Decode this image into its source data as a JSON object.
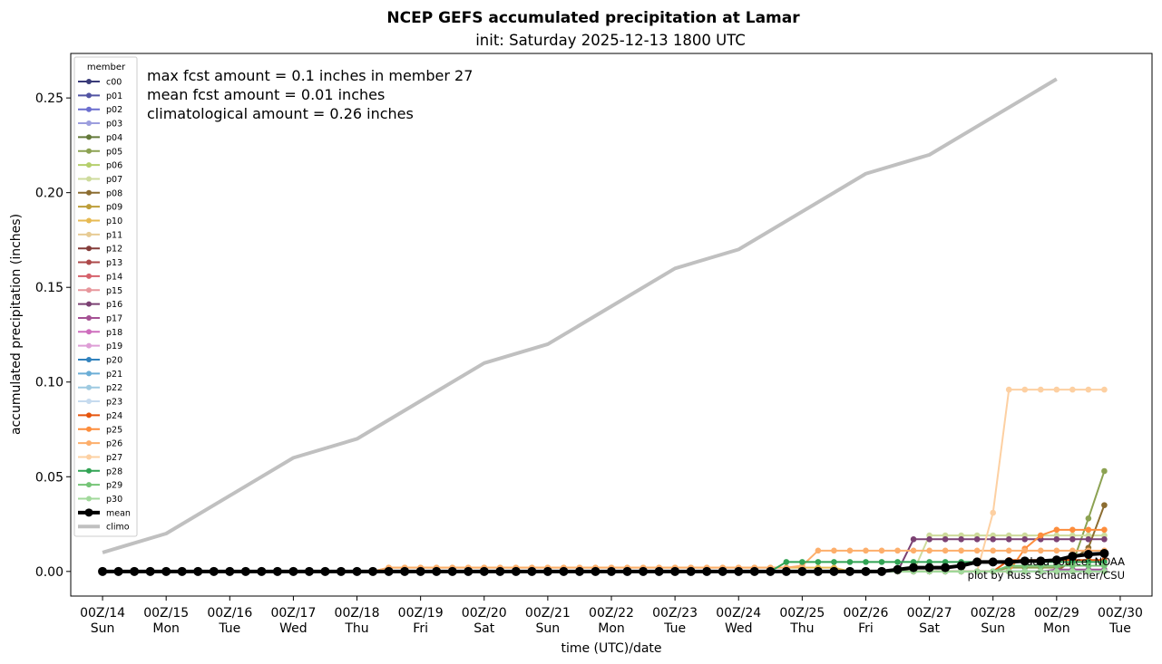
{
  "chart_data": {
    "type": "line",
    "title": "NCEP GEFS accumulated precipitation at Lamar",
    "subtitle": "init: Saturday 2025-12-13 1800 UTC",
    "xlabel": "time (UTC)/date",
    "ylabel": "accumulated precipitation (inches)",
    "xlim": [
      -0.5,
      16.5
    ],
    "ylim": [
      -0.013,
      0.2735
    ],
    "yticks": [
      0.0,
      0.05,
      0.1,
      0.15,
      0.2,
      0.25
    ],
    "ytick_labels": [
      "0.00",
      "0.05",
      "0.10",
      "0.15",
      "0.20",
      "0.25"
    ],
    "xticks": [
      {
        "day": "00Z/14",
        "dow": "Sun"
      },
      {
        "day": "00Z/15",
        "dow": "Mon"
      },
      {
        "day": "00Z/16",
        "dow": "Tue"
      },
      {
        "day": "00Z/17",
        "dow": "Wed"
      },
      {
        "day": "00Z/18",
        "dow": "Thu"
      },
      {
        "day": "00Z/19",
        "dow": "Fri"
      },
      {
        "day": "00Z/20",
        "dow": "Sat"
      },
      {
        "day": "00Z/21",
        "dow": "Sun"
      },
      {
        "day": "00Z/22",
        "dow": "Mon"
      },
      {
        "day": "00Z/23",
        "dow": "Tue"
      },
      {
        "day": "00Z/24",
        "dow": "Wed"
      },
      {
        "day": "00Z/25",
        "dow": "Thu"
      },
      {
        "day": "00Z/26",
        "dow": "Fri"
      },
      {
        "day": "00Z/27",
        "dow": "Sat"
      },
      {
        "day": "00Z/28",
        "dow": "Sun"
      },
      {
        "day": "00Z/29",
        "dow": "Mon"
      },
      {
        "day": "00Z/30",
        "dow": "Tue"
      }
    ],
    "annotations": [
      "max fcst amount = 0.1 inches in member 27",
      "mean fcst amount = 0.01 inches",
      "climatological amount = 0.26 inches"
    ],
    "credits": [
      "data source: NOAA",
      "plot by Russ Schumacher/CSU"
    ],
    "legend_title": "member",
    "legend_position": "upper-left",
    "time_start": 0,
    "time_step": 0.25,
    "n_steps": 64,
    "series": [
      {
        "name": "c00",
        "color": "#393b79",
        "default": 0,
        "steps": []
      },
      {
        "name": "p01",
        "color": "#5254a3",
        "default": 0,
        "steps": []
      },
      {
        "name": "p02",
        "color": "#6b6ecf",
        "default": 0,
        "steps": []
      },
      {
        "name": "p03",
        "color": "#9c9ede",
        "default": 0,
        "steps": []
      },
      {
        "name": "p04",
        "color": "#637939",
        "default": 0,
        "steps": []
      },
      {
        "name": "p05",
        "color": "#8ca252",
        "default": 0,
        "steps": [
          [
            57,
            0.002
          ],
          [
            61,
            0.004
          ],
          [
            62,
            0.028
          ],
          [
            63,
            0.053
          ]
        ]
      },
      {
        "name": "p06",
        "color": "#b5cf6b",
        "default": 0,
        "steps": []
      },
      {
        "name": "p07",
        "color": "#cedb9c",
        "default": 0,
        "steps": [
          [
            52,
            0.019
          ]
        ]
      },
      {
        "name": "p08",
        "color": "#8c6d31",
        "default": 0,
        "steps": [
          [
            61,
            0.006
          ],
          [
            62,
            0.0125
          ],
          [
            63,
            0.035
          ]
        ]
      },
      {
        "name": "p09",
        "color": "#bd9e39",
        "default": 0,
        "steps": []
      },
      {
        "name": "p10",
        "color": "#e7ba52",
        "default": 0,
        "steps": [
          [
            18,
            0.002
          ],
          [
            47,
            0.0
          ]
        ]
      },
      {
        "name": "p11",
        "color": "#e7cb94",
        "default": 0,
        "steps": []
      },
      {
        "name": "p12",
        "color": "#843c39",
        "default": 0,
        "steps": []
      },
      {
        "name": "p13",
        "color": "#ad494a",
        "default": 0,
        "steps": []
      },
      {
        "name": "p14",
        "color": "#d6616b",
        "default": 0,
        "steps": []
      },
      {
        "name": "p15",
        "color": "#e7969c",
        "default": 0,
        "steps": []
      },
      {
        "name": "p16",
        "color": "#7b4173",
        "default": 0,
        "steps": [
          [
            51,
            0.017
          ]
        ]
      },
      {
        "name": "p17",
        "color": "#a55194",
        "default": 0,
        "steps": [
          [
            60,
            0.001
          ]
        ]
      },
      {
        "name": "p18",
        "color": "#ce6dbd",
        "default": 0,
        "steps": []
      },
      {
        "name": "p19",
        "color": "#de9ed6",
        "default": 0,
        "steps": []
      },
      {
        "name": "p20",
        "color": "#3182bd",
        "default": 0,
        "steps": []
      },
      {
        "name": "p21",
        "color": "#6baed6",
        "default": 0,
        "steps": []
      },
      {
        "name": "p22",
        "color": "#9ecae1",
        "default": 0,
        "steps": []
      },
      {
        "name": "p23",
        "color": "#c6dbef",
        "default": 0,
        "steps": []
      },
      {
        "name": "p24",
        "color": "#e6550d",
        "default": 0,
        "steps": [
          [
            57,
            0.006
          ]
        ]
      },
      {
        "name": "p25",
        "color": "#fd8d3c",
        "default": 0,
        "steps": [
          [
            58,
            0.012
          ],
          [
            59,
            0.019
          ],
          [
            60,
            0.022
          ]
        ]
      },
      {
        "name": "p26",
        "color": "#fdae6b",
        "default": 0,
        "steps": [
          [
            18,
            0.002
          ],
          [
            44,
            0.003
          ],
          [
            45,
            0.011
          ]
        ]
      },
      {
        "name": "p27",
        "color": "#fdd0a2",
        "default": 0,
        "steps": [
          [
            56,
            0.031
          ],
          [
            57,
            0.096
          ]
        ]
      },
      {
        "name": "p28",
        "color": "#31a354",
        "default": 0,
        "steps": [
          [
            43,
            0.005
          ]
        ]
      },
      {
        "name": "p29",
        "color": "#74c476",
        "default": 0,
        "steps": [
          [
            57,
            0.003
          ]
        ]
      },
      {
        "name": "p30",
        "color": "#a1d99b",
        "default": 0,
        "steps": [
          [
            52,
            0.0
          ],
          [
            53,
            0.0
          ]
        ]
      },
      {
        "name": "mean",
        "color": "#000000",
        "default": 0,
        "steps": [
          [
            50,
            0.001
          ],
          [
            51,
            0.002
          ],
          [
            54,
            0.003
          ],
          [
            55,
            0.005
          ],
          [
            58,
            0.0055
          ],
          [
            60,
            0.006
          ],
          [
            61,
            0.008
          ],
          [
            62,
            0.009
          ],
          [
            63,
            0.0095
          ]
        ]
      },
      {
        "name": "climo",
        "color": "#c0c0c0",
        "x": [
          0,
          1,
          2,
          3,
          4,
          5,
          6,
          7,
          8,
          9,
          10,
          11,
          12,
          13,
          14,
          15
        ],
        "y": [
          0.01,
          0.02,
          0.04,
          0.06,
          0.07,
          0.09,
          0.11,
          0.12,
          0.14,
          0.16,
          0.17,
          0.19,
          0.21,
          0.22,
          0.24,
          0.26
        ]
      }
    ]
  }
}
